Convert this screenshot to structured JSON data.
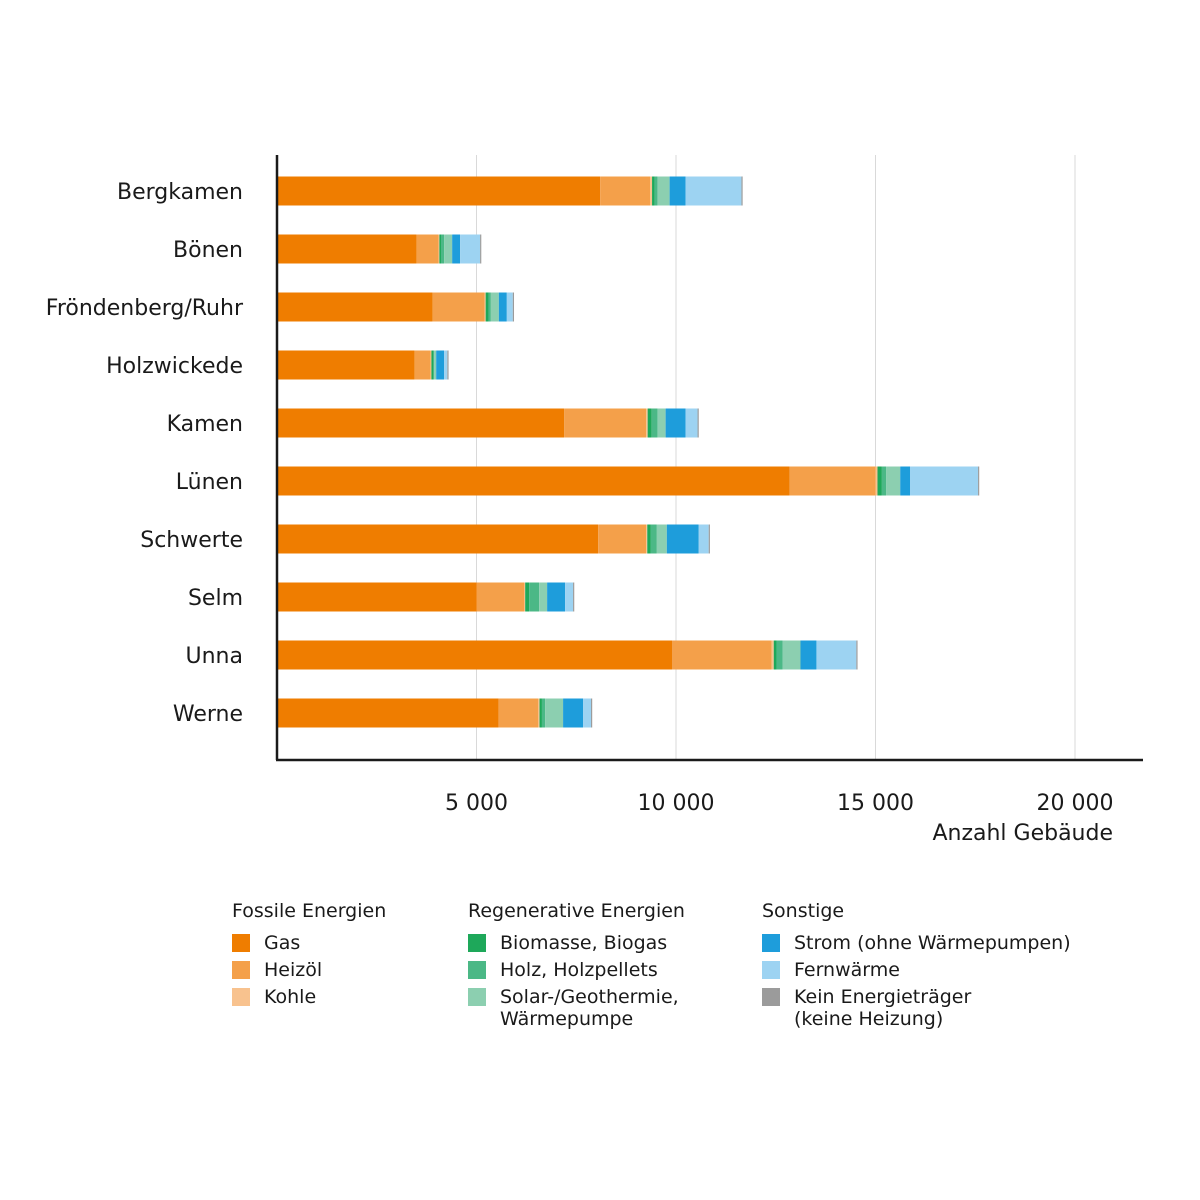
{
  "chart_data": {
    "type": "bar",
    "orientation": "horizontal",
    "stacked": true,
    "title": "",
    "xlabel": "Anzahl Gebäude",
    "ylabel": "",
    "xlim": [
      0,
      22000
    ],
    "xticks": [
      5000,
      10000,
      15000,
      20000
    ],
    "xtick_labels": [
      "5 000",
      "10 000",
      "15 000",
      "20 000"
    ],
    "grid": "vertical",
    "categories": [
      "Bergkamen",
      "Bönen",
      "Fröndenberg/Ruhr",
      "Holzwickede",
      "Kamen",
      "Lünen",
      "Schwerte",
      "Selm",
      "Unna",
      "Werne"
    ],
    "series": [
      {
        "name": "Gas",
        "color": "#EF7D00",
        "values": [
          8100,
          3500,
          3900,
          3450,
          7200,
          12850,
          8050,
          5000,
          9900,
          5550
        ]
      },
      {
        "name": "Heizöl",
        "color": "#F4A04A",
        "values": [
          1250,
          550,
          1300,
          400,
          2050,
          2150,
          1200,
          1200,
          2500,
          1000
        ]
      },
      {
        "name": "Kohle",
        "color": "#F8C28E",
        "values": [
          50,
          20,
          30,
          20,
          40,
          50,
          30,
          20,
          50,
          30
        ]
      },
      {
        "name": "Biomasse, Biogas",
        "color": "#1EA85A",
        "values": [
          60,
          40,
          70,
          40,
          100,
          110,
          90,
          100,
          70,
          60
        ]
      },
      {
        "name": "Holz, Holzpellets",
        "color": "#4BB886",
        "values": [
          80,
          80,
          60,
          30,
          150,
          110,
          150,
          250,
          150,
          80
        ]
      },
      {
        "name": "Solar-/Geothermie,\nWärmepumpe",
        "color": "#8CCFB0",
        "values": [
          300,
          200,
          200,
          50,
          200,
          350,
          250,
          200,
          450,
          450
        ]
      },
      {
        "name": "Strom (ohne Wärmepumpen)",
        "color": "#1E9DDB",
        "values": [
          400,
          200,
          200,
          200,
          500,
          250,
          800,
          450,
          400,
          500
        ]
      },
      {
        "name": "Fernwärme",
        "color": "#9DD3F2",
        "values": [
          1400,
          500,
          150,
          80,
          300,
          1700,
          250,
          200,
          1000,
          200
        ]
      },
      {
        "name": "Kein Energieträger\n(keine Heizung)",
        "color": "#9B9B9B",
        "values": [
          30,
          30,
          30,
          30,
          30,
          30,
          30,
          30,
          30,
          30
        ]
      }
    ]
  },
  "legend": {
    "groups": [
      {
        "title": "Fossile Energien",
        "items": [
          {
            "label": "Gas",
            "color": "#EF7D00"
          },
          {
            "label": "Heizöl",
            "color": "#F4A04A"
          },
          {
            "label": "Kohle",
            "color": "#F8C28E"
          }
        ]
      },
      {
        "title": "Regenerative Energien",
        "items": [
          {
            "label": "Biomasse, Biogas",
            "color": "#1EA85A"
          },
          {
            "label": "Holz, Holzpellets",
            "color": "#4BB886"
          },
          {
            "label": "Solar-/Geothermie,\nWärmepumpe",
            "color": "#8CCFB0"
          }
        ]
      },
      {
        "title": "Sonstige",
        "items": [
          {
            "label": "Strom (ohne Wärmepumpen)",
            "color": "#1E9DDB"
          },
          {
            "label": "Fernwärme",
            "color": "#9DD3F2"
          },
          {
            "label": "Kein Energieträger\n(keine Heizung)",
            "color": "#9B9B9B"
          }
        ]
      }
    ]
  }
}
